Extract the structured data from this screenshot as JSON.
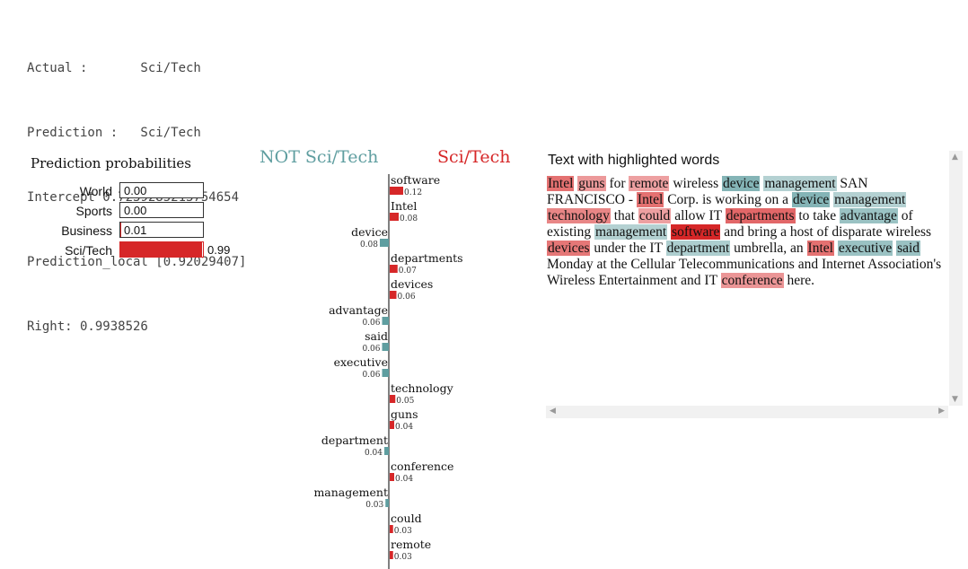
{
  "output": {
    "lines": [
      "Actual :       Sci/Tech",
      "Prediction :   Sci/Tech",
      "Intercept 0.7239285213754654",
      "Prediction_local [0.92029407]",
      "Right: 0.9938526"
    ]
  },
  "probabilities": {
    "title": "Prediction probabilities",
    "rows": [
      {
        "label": "World",
        "value": 0.0,
        "text": "0.00"
      },
      {
        "label": "Sports",
        "value": 0.0,
        "text": "0.00"
      },
      {
        "label": "Business",
        "value": 0.01,
        "text": "0.01"
      },
      {
        "label": "Sci/Tech",
        "value": 0.99,
        "text": "0.99"
      }
    ],
    "bar_color": "#d62728"
  },
  "chart_data": {
    "type": "bar",
    "negative_label": "NOT Sci/Tech",
    "positive_label": "Sci/Tech",
    "negative_color": "#5f9ea0",
    "positive_color": "#d62728",
    "categories": [
      "software",
      "Intel",
      "device",
      "departments",
      "devices",
      "advantage",
      "said",
      "executive",
      "technology",
      "guns",
      "department",
      "conference",
      "management",
      "could",
      "remote"
    ],
    "values": [
      0.12,
      0.08,
      -0.08,
      0.07,
      0.06,
      -0.06,
      -0.06,
      -0.06,
      0.05,
      0.04,
      -0.04,
      0.04,
      -0.03,
      0.03,
      0.03
    ],
    "value_labels": [
      "0.12",
      "0.08",
      "0.08",
      "0.07",
      "0.06",
      "0.06",
      "0.06",
      "0.06",
      "0.05",
      "0.04",
      "0.04",
      "0.04",
      "0.03",
      "0.03",
      "0.03"
    ]
  },
  "text_panel": {
    "title": "Text with highlighted words",
    "tokens": [
      {
        "t": "Intel",
        "c": "pos",
        "s": 0.55
      },
      {
        "t": " "
      },
      {
        "t": "guns",
        "c": "pos",
        "s": 0.3
      },
      {
        "t": " for "
      },
      {
        "t": "remote",
        "c": "pos",
        "s": 0.25
      },
      {
        "t": " wireless "
      },
      {
        "t": "device",
        "c": "neg",
        "s": 0.7
      },
      {
        "t": " "
      },
      {
        "t": "management",
        "c": "neg",
        "s": 0.3
      },
      {
        "t": " SAN FRANCISCO - "
      },
      {
        "t": "Intel",
        "c": "pos",
        "s": 0.55
      },
      {
        "t": " Corp. is working on a "
      },
      {
        "t": "device",
        "c": "neg",
        "s": 0.7
      },
      {
        "t": " "
      },
      {
        "t": "management",
        "c": "neg",
        "s": 0.3
      },
      {
        "t": " "
      },
      {
        "t": "technology",
        "c": "pos",
        "s": 0.42
      },
      {
        "t": " that "
      },
      {
        "t": "could",
        "c": "pos",
        "s": 0.25
      },
      {
        "t": " allow IT "
      },
      {
        "t": "departments",
        "c": "pos",
        "s": 0.6
      },
      {
        "t": " to take "
      },
      {
        "t": "advantage",
        "c": "neg",
        "s": 0.5
      },
      {
        "t": " of existing "
      },
      {
        "t": "management",
        "c": "neg",
        "s": 0.3
      },
      {
        "t": " "
      },
      {
        "t": "software",
        "c": "pos",
        "s": 1.0
      },
      {
        "t": " and bring a host of disparate wireless "
      },
      {
        "t": "devices",
        "c": "pos",
        "s": 0.5
      },
      {
        "t": " under the IT "
      },
      {
        "t": "department",
        "c": "neg",
        "s": 0.35
      },
      {
        "t": " umbrella, an "
      },
      {
        "t": "Intel",
        "c": "pos",
        "s": 0.55
      },
      {
        "t": " "
      },
      {
        "t": "executive",
        "c": "neg",
        "s": 0.5
      },
      {
        "t": " "
      },
      {
        "t": "said",
        "c": "neg",
        "s": 0.5
      },
      {
        "t": " Monday at the Cellular Telecommunications and Internet Association's Wireless Entertainment and IT "
      },
      {
        "t": "conference",
        "c": "pos",
        "s": 0.32
      },
      {
        "t": " here."
      }
    ]
  }
}
